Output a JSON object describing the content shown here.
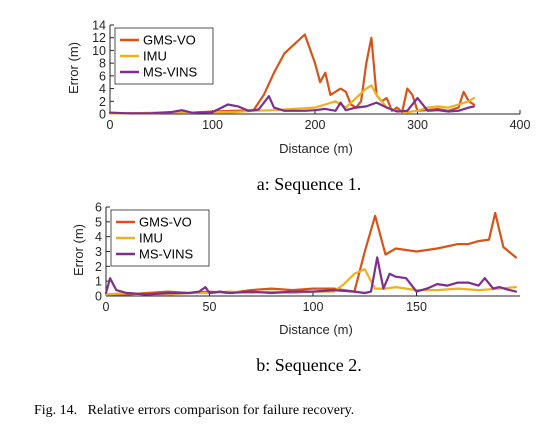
{
  "chart_data": [
    {
      "type": "line",
      "xlabel": "Distance (m)",
      "ylabel": "Error (m)",
      "xlim": [
        0,
        400
      ],
      "ylim": [
        0,
        14
      ],
      "xticks": [
        "0",
        "100",
        "200",
        "300",
        "400"
      ],
      "yticks": [
        "0",
        "2",
        "4",
        "6",
        "8",
        "10",
        "12",
        "14"
      ],
      "legend_position": "top-left",
      "caption": "a: Sequence 1.",
      "series": [
        {
          "name": "GMS-VO",
          "color": "#d95319",
          "x": [
            0,
            20,
            40,
            60,
            80,
            100,
            120,
            140,
            150,
            160,
            170,
            190,
            200,
            205,
            210,
            215,
            220,
            225,
            230,
            235,
            240,
            245,
            250,
            255,
            260,
            265,
            270,
            275,
            280,
            285,
            290,
            295,
            300,
            310,
            320,
            330,
            340,
            345,
            350,
            355
          ],
          "y": [
            0.2,
            0.1,
            0.1,
            0.2,
            0.2,
            0.4,
            0.5,
            0.6,
            3.0,
            6.5,
            9.5,
            12.5,
            8.0,
            5.0,
            6.5,
            3.0,
            3.5,
            4.0,
            3.5,
            1.5,
            1.0,
            2.0,
            8.0,
            12.0,
            3.0,
            2.0,
            2.5,
            0.5,
            1.0,
            0.3,
            4.0,
            3.0,
            0.5,
            0.6,
            0.8,
            0.5,
            1.0,
            3.5,
            2.0,
            1.5
          ]
        },
        {
          "name": "IMU",
          "color": "#edb120",
          "x": [
            0,
            20,
            40,
            60,
            80,
            100,
            120,
            140,
            160,
            180,
            200,
            210,
            220,
            230,
            240,
            250,
            255,
            260,
            270,
            280,
            290,
            300,
            310,
            320,
            330,
            340,
            350,
            355
          ],
          "y": [
            0.1,
            0.1,
            0.2,
            0.3,
            0.2,
            0.3,
            0.3,
            0.5,
            0.6,
            0.8,
            1.0,
            1.5,
            2.0,
            1.0,
            2.5,
            4.0,
            4.5,
            3.0,
            1.0,
            0.5,
            0.3,
            0.5,
            1.0,
            1.2,
            1.0,
            1.5,
            2.0,
            2.5
          ]
        },
        {
          "name": "MS-VINS",
          "color": "#7e2f8e",
          "x": [
            0,
            20,
            40,
            60,
            70,
            80,
            100,
            115,
            125,
            135,
            145,
            155,
            160,
            170,
            180,
            190,
            200,
            210,
            220,
            225,
            230,
            240,
            250,
            260,
            270,
            280,
            290,
            300,
            310,
            320,
            330,
            340,
            350,
            355
          ],
          "y": [
            0.2,
            0.1,
            0.1,
            0.3,
            0.6,
            0.2,
            0.3,
            1.5,
            1.2,
            0.5,
            0.7,
            2.8,
            1.0,
            0.5,
            0.5,
            0.5,
            0.6,
            0.8,
            0.5,
            1.8,
            0.6,
            1.0,
            1.2,
            1.8,
            1.0,
            0.4,
            0.5,
            2.5,
            0.5,
            0.6,
            0.4,
            0.5,
            1.0,
            1.2
          ]
        }
      ]
    },
    {
      "type": "line",
      "xlabel": "Distance (m)",
      "ylabel": "Error (m)",
      "xlim": [
        0,
        200
      ],
      "ylim": [
        0,
        6
      ],
      "xticks": [
        "0",
        "50",
        "100",
        "150"
      ],
      "yticks": [
        "0",
        "1",
        "2",
        "3",
        "4",
        "5",
        "6"
      ],
      "legend_position": "top-left",
      "caption": "b: Sequence 2.",
      "series": [
        {
          "name": "GMS-VO",
          "color": "#d95319",
          "x": [
            0,
            10,
            20,
            30,
            40,
            50,
            60,
            70,
            80,
            90,
            100,
            110,
            120,
            125,
            130,
            135,
            140,
            150,
            160,
            170,
            175,
            180,
            185,
            188,
            192,
            198
          ],
          "y": [
            0.1,
            0.1,
            0.2,
            0.3,
            0.2,
            0.3,
            0.2,
            0.4,
            0.5,
            0.4,
            0.5,
            0.5,
            0.3,
            3.0,
            5.4,
            2.8,
            3.2,
            3.0,
            3.2,
            3.5,
            3.5,
            3.7,
            3.8,
            5.6,
            3.3,
            2.6
          ]
        },
        {
          "name": "IMU",
          "color": "#edb120",
          "x": [
            0,
            10,
            20,
            30,
            40,
            50,
            60,
            70,
            80,
            90,
            100,
            110,
            115,
            120,
            125,
            128,
            130,
            135,
            140,
            150,
            160,
            170,
            180,
            190,
            198
          ],
          "y": [
            0.1,
            0.2,
            0.1,
            0.1,
            0.2,
            0.2,
            0.3,
            0.2,
            0.3,
            0.2,
            0.3,
            0.3,
            0.8,
            1.5,
            1.8,
            1.0,
            0.5,
            0.5,
            0.6,
            0.4,
            0.4,
            0.5,
            0.4,
            0.5,
            0.6
          ]
        },
        {
          "name": "MS-VINS",
          "color": "#7e2f8e",
          "x": [
            0,
            2,
            5,
            10,
            20,
            30,
            40,
            45,
            48,
            50,
            55,
            60,
            70,
            80,
            90,
            100,
            110,
            120,
            125,
            128,
            131,
            134,
            137,
            140,
            145,
            150,
            155,
            160,
            165,
            170,
            175,
            180,
            183,
            187,
            190,
            195,
            198
          ],
          "y": [
            0.2,
            1.2,
            0.4,
            0.2,
            0.1,
            0.2,
            0.2,
            0.3,
            0.6,
            0.2,
            0.3,
            0.2,
            0.3,
            0.2,
            0.3,
            0.3,
            0.4,
            0.3,
            0.2,
            0.3,
            2.6,
            0.5,
            1.5,
            1.3,
            1.2,
            0.3,
            0.5,
            0.8,
            0.7,
            0.9,
            0.9,
            0.7,
            1.2,
            0.5,
            0.6,
            0.4,
            0.3
          ]
        }
      ]
    }
  ],
  "figure_caption": "Fig. 14.   Relative errors comparison for failure recovery."
}
